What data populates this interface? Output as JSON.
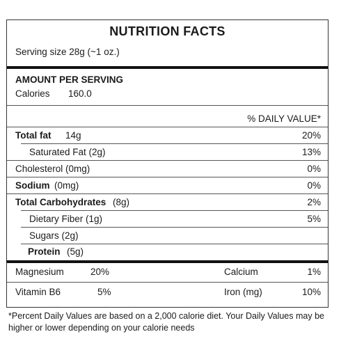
{
  "title": "NUTRITION FACTS",
  "serving_size": "Serving size 28g (~1 oz.)",
  "amount_per_serving": "AMOUNT PER SERVING",
  "calories": {
    "label": "Calories",
    "value": "160.0"
  },
  "dv_header": "% DAILY VALUE*",
  "nutrients": [
    {
      "label": "Total fat",
      "amount": "14g",
      "dv": "20%"
    },
    {
      "label": "Saturated Fat (2g)",
      "dv": "13%"
    },
    {
      "label": "Cholesterol (0mg)",
      "dv": "0%"
    },
    {
      "label": "Sodium",
      "amount": "(0mg)",
      "dv": "0%"
    },
    {
      "label": "Total Carbohydrates",
      "amount": "(8g)",
      "dv": "2%"
    },
    {
      "label": "Dietary Fiber (1g)",
      "dv": "5%"
    },
    {
      "label": "Sugars (2g)"
    },
    {
      "label": "Protein",
      "amount": "(5g)"
    }
  ],
  "minerals": [
    {
      "label": "Magnesium",
      "dv": "20%"
    },
    {
      "label": "Calcium",
      "dv": "1%"
    },
    {
      "label": "Vitamin B6",
      "dv": "5%"
    },
    {
      "label": "Iron (mg)",
      "dv": "10%"
    }
  ],
  "footnote": "*Percent Daily Values are based on a 2,000 calorie diet. Your Daily Values may be higher or lower depending on your calorie needs"
}
